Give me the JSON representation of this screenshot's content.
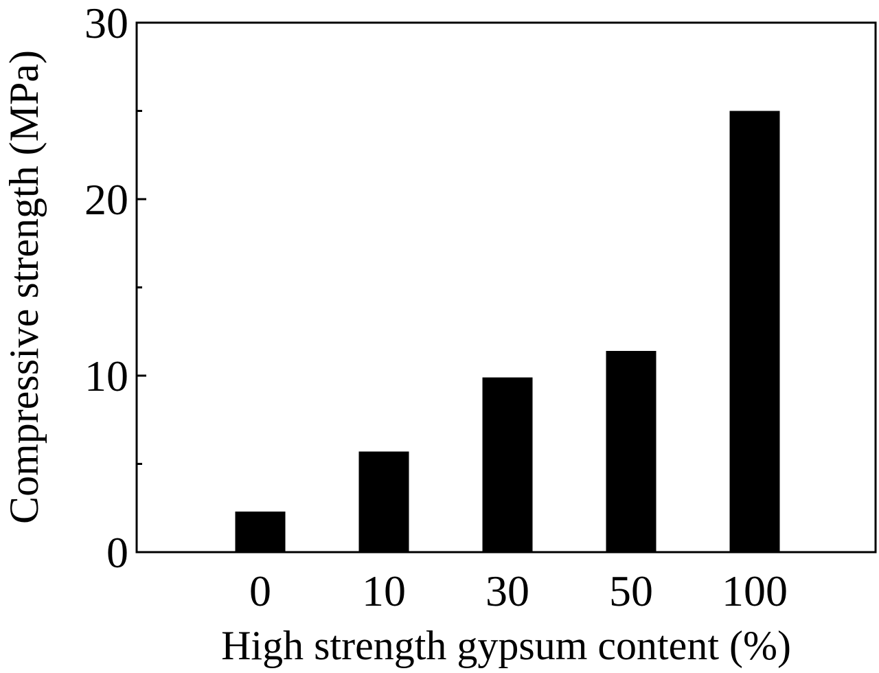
{
  "chart_data": {
    "type": "bar",
    "title": "",
    "xlabel": "High strength gypsum content (%)",
    "ylabel": "Compressive strength  (MPa)",
    "categories": [
      "0",
      "10",
      "30",
      "50",
      "100"
    ],
    "values": [
      2.3,
      5.7,
      9.9,
      11.4,
      25.0
    ],
    "ylim": [
      0,
      30
    ],
    "yticks": [
      "0",
      "10",
      "20",
      "30"
    ],
    "minor_ytick_values": [
      5,
      15,
      25
    ],
    "grid": false,
    "legend": "none",
    "bar_color": "#000000",
    "axis_color": "#000000"
  }
}
